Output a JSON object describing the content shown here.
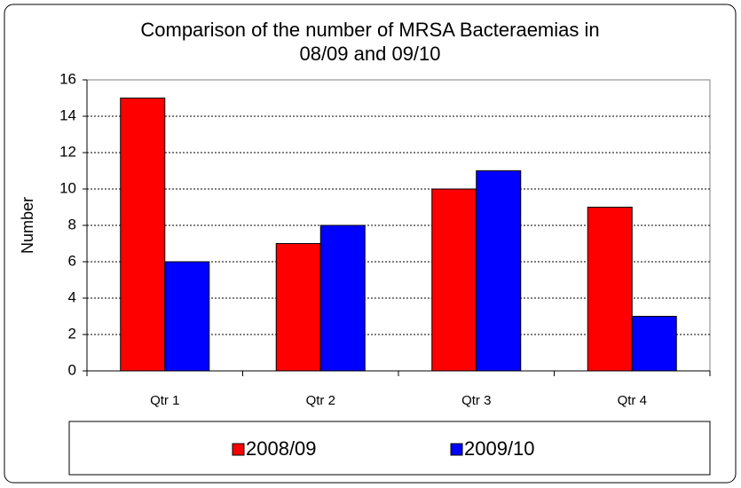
{
  "chart_data": {
    "type": "bar",
    "title": "Comparison of the number of MRSA Bacteraemias in 08/09 and 09/10",
    "y_label": "Number",
    "categories": [
      "Qtr 1",
      "Qtr 2",
      "Qtr 3",
      "Qtr 4"
    ],
    "series": [
      {
        "name": "2008/09",
        "color": "#ff0000",
        "values": [
          15,
          7,
          10,
          9
        ]
      },
      {
        "name": "2009/10",
        "color": "#0000ff",
        "values": [
          6,
          8,
          11,
          3
        ]
      }
    ],
    "ylim": [
      0,
      16
    ],
    "yticks": [
      0,
      2,
      4,
      6,
      8,
      10,
      12,
      14,
      16
    ],
    "grid": true,
    "legend": "bottom"
  }
}
